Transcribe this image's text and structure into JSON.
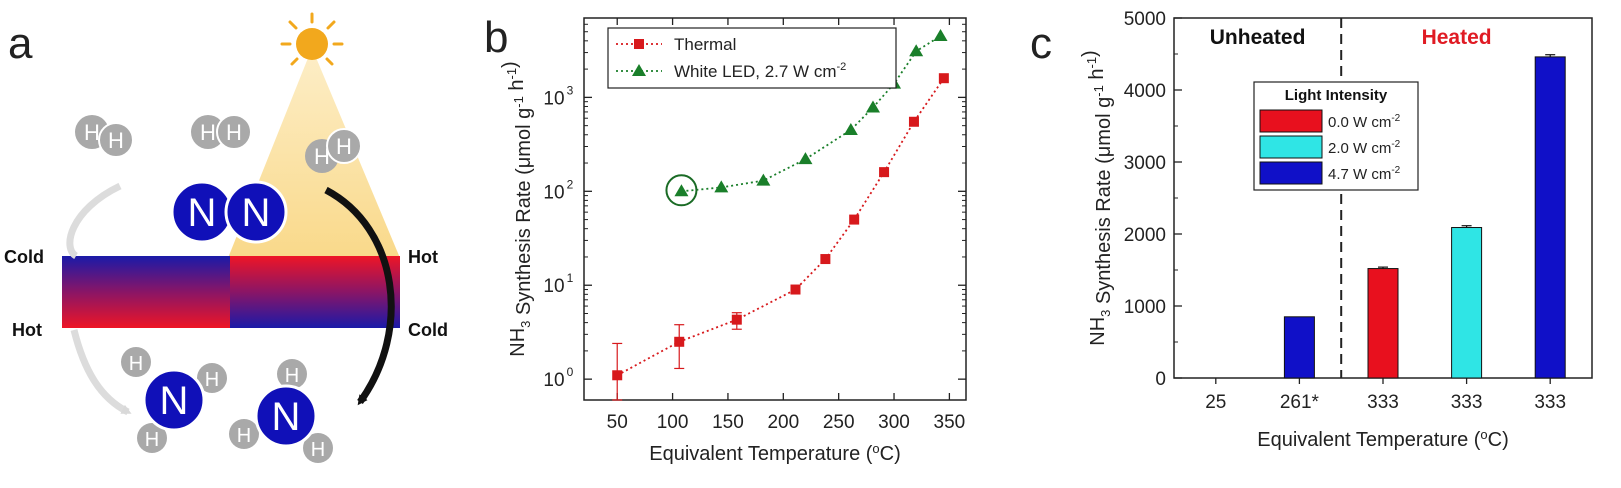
{
  "panel_a": {
    "letter": "a",
    "cold_left": "Cold",
    "hot_left": "Hot",
    "hot_right": "Hot",
    "cold_right": "Cold",
    "atom_h": "H",
    "atom_n": "N",
    "colors": {
      "cold": "#1a1aa8",
      "hot": "#e8102a",
      "light_cone": "#fbe3a3",
      "sun": "#f2a81d",
      "atom_gray": "#a9a9a9",
      "atom_blue": "#1010b8"
    },
    "icons": [
      "sun-icon",
      "h2-molecule",
      "n2-molecule",
      "nh3-molecule",
      "arrow-curved"
    ]
  },
  "chart_data": [
    {
      "panel": "b",
      "type": "scatter",
      "title": "",
      "xlabel": "Equivalent Temperature (°C)",
      "ylabel": "NH3 Synthesis Rate (μmol g-1 h-1)",
      "xlim": [
        20,
        365
      ],
      "ylim": [
        0.6,
        7000
      ],
      "yscale": "log",
      "xticks": [
        50,
        100,
        150,
        200,
        250,
        300,
        350
      ],
      "yticks": [
        1,
        10,
        100,
        1000
      ],
      "ytick_labels": [
        "10",
        "10",
        "10",
        "10"
      ],
      "ytick_exponents": [
        "0",
        "1",
        "2",
        "3"
      ],
      "legend_position": "top-left",
      "series": [
        {
          "name": "Thermal",
          "marker": "square",
          "color": "#d7191c",
          "x": [
            50,
            106,
            158,
            211,
            238,
            264,
            291,
            318,
            345
          ],
          "y": [
            1.1,
            2.5,
            4.3,
            9,
            19,
            50,
            160,
            550,
            1600
          ],
          "err_low": [
            0.6,
            1.2,
            0.9,
            0,
            0,
            0,
            0,
            0,
            0
          ],
          "err_high": [
            1.3,
            1.3,
            0.8,
            0,
            0,
            0,
            0,
            0,
            0
          ]
        },
        {
          "name": "White LED, 2.7 W cm",
          "name_exponent": "-2",
          "marker": "triangle",
          "color": "#1a7f2a",
          "x": [
            108,
            144,
            182,
            220,
            261,
            281,
            300,
            320,
            342
          ],
          "y": [
            100,
            110,
            130,
            220,
            450,
            780,
            1400,
            3100,
            4500
          ]
        }
      ],
      "highlight": {
        "x": 108,
        "y": 100,
        "shape": "circle"
      }
    },
    {
      "panel": "c",
      "type": "bar",
      "title": "",
      "xlabel": "Equivalent Temperature (°C)",
      "ylabel": "NH3 Synthesis Rate (μmol g-1 h-1)",
      "ylim": [
        0,
        5000
      ],
      "yticks": [
        0,
        1000,
        2000,
        3000,
        4000,
        5000
      ],
      "categories": [
        "25",
        "261*",
        "333",
        "333",
        "333"
      ],
      "values": [
        0,
        850,
        1520,
        2090,
        4460
      ],
      "errors": [
        0,
        0,
        20,
        25,
        30
      ],
      "bar_colors": [
        "#1010c8",
        "#1010c8",
        "#e8101e",
        "#2fe5e5",
        "#1010c8"
      ],
      "region_labels": [
        {
          "text": "Unheated",
          "color": "#111111"
        },
        {
          "text": "Heated",
          "color": "#e01b24"
        }
      ],
      "divider_after_category": 1,
      "legend": {
        "title": "Light Intensity",
        "position": "upper-center",
        "items": [
          {
            "label": "0.0 W cm",
            "exponent": "-2",
            "color": "#e8101e"
          },
          {
            "label": "2.0 W cm",
            "exponent": "-2",
            "color": "#2fe5e5"
          },
          {
            "label": "4.7 W cm",
            "exponent": "-2",
            "color": "#1010c8"
          }
        ]
      }
    }
  ],
  "panel_b": {
    "letter": "b"
  },
  "panel_c": {
    "letter": "c"
  }
}
